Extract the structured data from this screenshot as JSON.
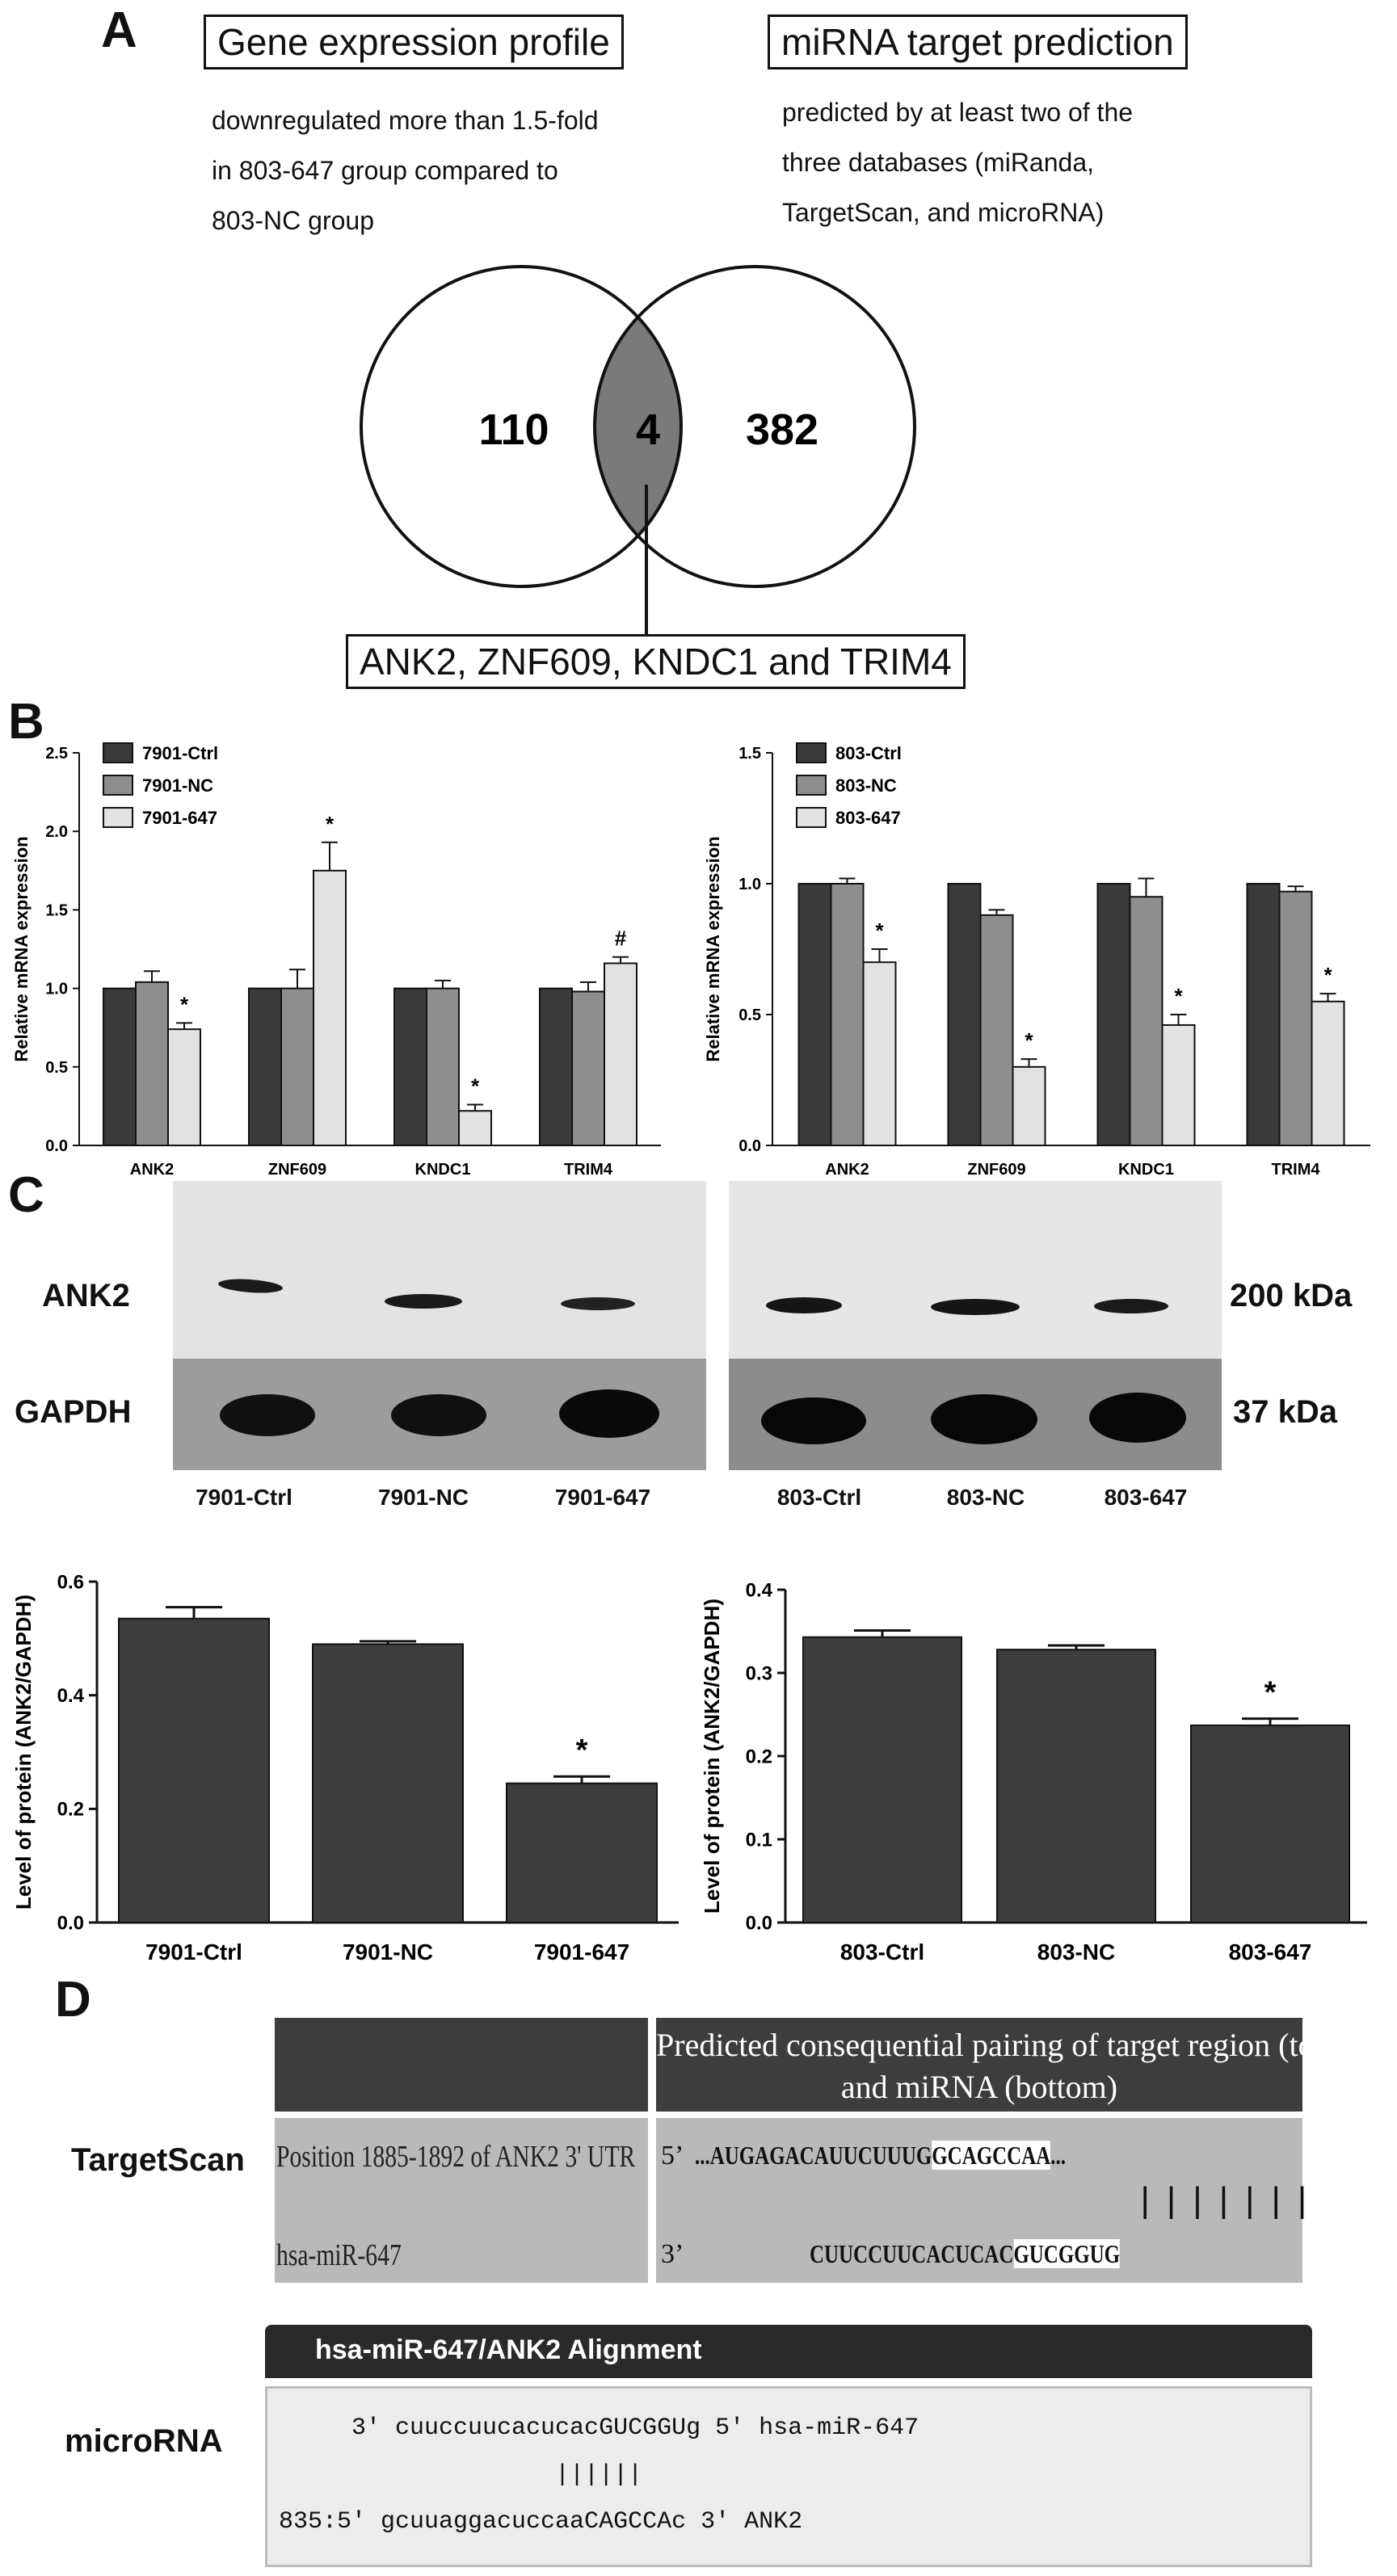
{
  "panels": {
    "A": {
      "letter": "A",
      "left_box": "Gene expression profile",
      "left_desc": [
        "downregulated more than 1.5-fold",
        "in 803-647 group compared to",
        "803-NC group"
      ],
      "right_box": "miRNA target prediction",
      "right_desc": [
        "predicted by at least two of the",
        "three databases (miRanda,",
        "TargetScan, and microRNA)"
      ],
      "venn": {
        "left_only": "110",
        "overlap": "4",
        "right_only": "382",
        "overlap_color": "#7a7a7a"
      },
      "result_box": "ANK2, ZNF609, KNDC1 and TRIM4"
    },
    "B": {
      "letter": "B"
    },
    "C": {
      "letter": "C",
      "blot_left_lanes": [
        "7901-Ctrl",
        "7901-NC",
        "7901-647"
      ],
      "blot_right_lanes": [
        "803-Ctrl",
        "803-NC",
        "803-647"
      ],
      "row1": "ANK2",
      "row2": "GAPDH",
      "size1": "200 kDa",
      "size2": "37 kDa"
    },
    "D": {
      "letter": "D",
      "targetscan_label": "TargetScan",
      "table_header": [
        "Predicted consequential pairing of target region (top)",
        "and miRNA (bottom)"
      ],
      "row1_left": "Position 1885-1892 of ANK2 3' UTR",
      "row1_prime": "5’",
      "row1_seq_pre": "...AUGAGACAUUCUUUG",
      "row1_seq_hl": "GCAGCCAA",
      "row1_seq_post": "...",
      "pairing": "|||||||",
      "row2_left": "hsa-miR-647",
      "row2_prime": "3’",
      "row2_seq_pre": "CUUCCUUCACUCAC",
      "row2_seq_hl": "GUCGGUG",
      "microrna_label": "microRNA",
      "align_title": "hsa-miR-647/ANK2 Alignment",
      "align_line1": "     3' cuuccuucacucacGUCGGUg 5' hsa-miR-647",
      "align_line2": "                   ||||||",
      "align_line3": "835:5' gcuuaggacuccaaCAGCCAc 3' ANK2"
    }
  },
  "chart_data": [
    {
      "type": "bar",
      "id": "B-left",
      "categories": [
        "ANK2",
        "ZNF609",
        "KNDC1",
        "TRIM4"
      ],
      "series": [
        {
          "name": "7901-Ctrl",
          "color": "#3a3a3a",
          "values": [
            1.0,
            1.0,
            1.0,
            1.0
          ],
          "errors": [
            0,
            0,
            0,
            0
          ]
        },
        {
          "name": "7901-NC",
          "color": "#8e8e8e",
          "values": [
            1.04,
            1.0,
            1.0,
            0.98
          ],
          "errors": [
            0.07,
            0.12,
            0.05,
            0.06
          ]
        },
        {
          "name": "7901-647",
          "color": "#e2e2e2",
          "values": [
            0.74,
            1.75,
            0.22,
            1.16
          ],
          "errors": [
            0.04,
            0.18,
            0.04,
            0.04
          ]
        }
      ],
      "annotations": [
        "*",
        "*",
        "*",
        "#"
      ],
      "ylabel": "Relative mRNA expression",
      "ylim": [
        0,
        2.5
      ],
      "yticks": [
        "0.0",
        "0.5",
        "1.0",
        "1.5",
        "2.0",
        "2.5"
      ],
      "legend": "top-left"
    },
    {
      "type": "bar",
      "id": "B-right",
      "categories": [
        "ANK2",
        "ZNF609",
        "KNDC1",
        "TRIM4"
      ],
      "series": [
        {
          "name": "803-Ctrl",
          "color": "#3a3a3a",
          "values": [
            1.0,
            1.0,
            1.0,
            1.0
          ],
          "errors": [
            0,
            0,
            0,
            0
          ]
        },
        {
          "name": "803-NC",
          "color": "#8e8e8e",
          "values": [
            1.0,
            0.88,
            0.95,
            0.97
          ],
          "errors": [
            0.02,
            0.02,
            0.07,
            0.02
          ]
        },
        {
          "name": "803-647",
          "color": "#e2e2e2",
          "values": [
            0.7,
            0.3,
            0.46,
            0.55
          ],
          "errors": [
            0.05,
            0.03,
            0.04,
            0.03
          ]
        }
      ],
      "annotations": [
        "*",
        "*",
        "*",
        "*"
      ],
      "ylabel": "Relative mRNA expression",
      "ylim": [
        0,
        1.5
      ],
      "yticks": [
        "0.0",
        "0.5",
        "1.0",
        "1.5"
      ],
      "legend": "top-left"
    },
    {
      "type": "bar",
      "id": "C-left",
      "categories": [
        "7901-Ctrl",
        "7901-NC",
        "7901-647"
      ],
      "values": [
        0.535,
        0.49,
        0.245
      ],
      "errors": [
        0.02,
        0.005,
        0.012
      ],
      "annotations": [
        "",
        "",
        "*"
      ],
      "ylabel": "Level of protein (ANK2/GAPDH)",
      "ylim": [
        0,
        0.6
      ],
      "yticks": [
        "0.0",
        "0.2",
        "0.4",
        "0.6"
      ],
      "color": "#3d3d3d"
    },
    {
      "type": "bar",
      "id": "C-right",
      "categories": [
        "803-Ctrl",
        "803-NC",
        "803-647"
      ],
      "values": [
        0.343,
        0.328,
        0.237
      ],
      "errors": [
        0.008,
        0.005,
        0.008
      ],
      "annotations": [
        "",
        "",
        "*"
      ],
      "ylabel": "Level of protein (ANK2/GAPDH)",
      "ylim": [
        0,
        0.4
      ],
      "yticks": [
        "0.0",
        "0.1",
        "0.2",
        "0.3",
        "0.4"
      ],
      "color": "#3d3d3d"
    }
  ]
}
